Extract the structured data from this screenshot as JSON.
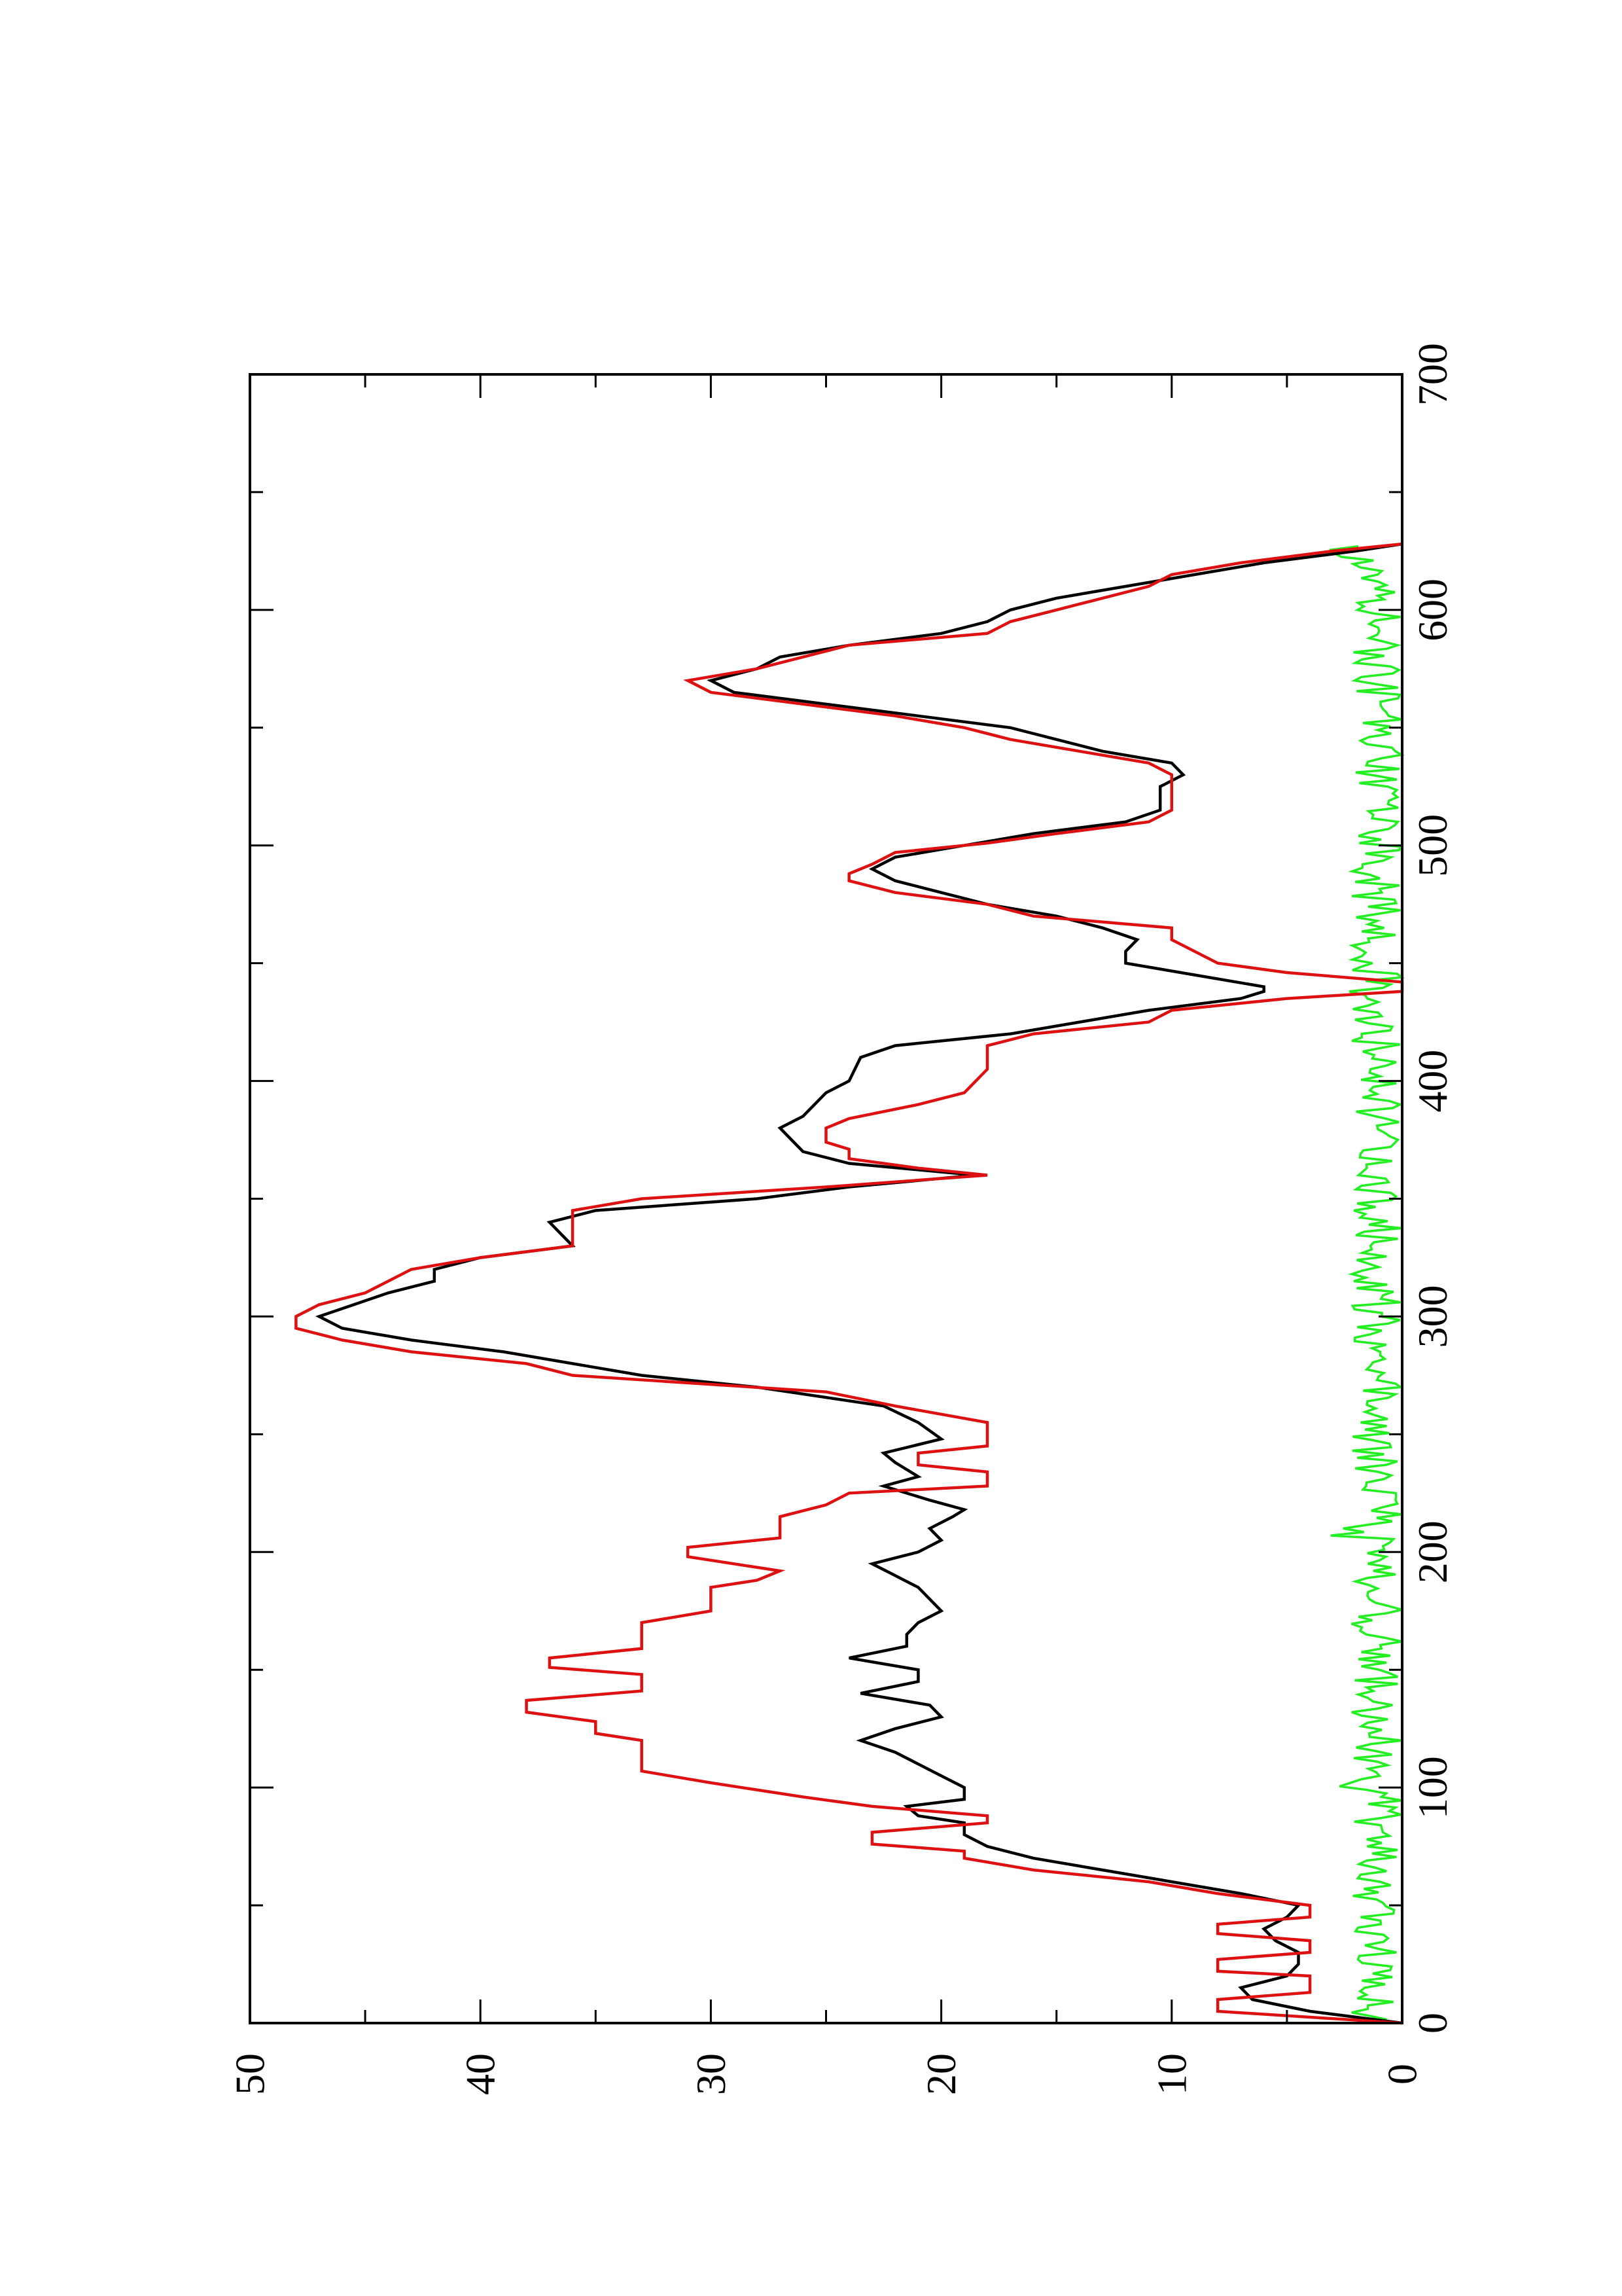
{
  "chart_data": {
    "type": "line",
    "title": "",
    "xlabel": "",
    "ylabel": "",
    "orientation": "rotated-90-ccw",
    "xlim": [
      0,
      700
    ],
    "ylim": [
      0,
      50
    ],
    "x_ticks": [
      0,
      100,
      200,
      300,
      400,
      500,
      600,
      700
    ],
    "x_tick_labels": [
      "0",
      "100",
      "200",
      "300",
      "400",
      "500",
      "600",
      "700"
    ],
    "x_minor_ticks": [
      50,
      150,
      250,
      350,
      450,
      550,
      650
    ],
    "y_ticks": [
      0,
      10,
      20,
      30,
      40,
      50
    ],
    "y_tick_labels": [
      "0",
      "10",
      "20",
      "30",
      "40",
      "50"
    ],
    "y_minor_ticks": [
      5,
      15,
      25,
      35,
      45
    ],
    "grid": false,
    "legend": "none",
    "series": [
      {
        "color": "#000000",
        "points": [
          [
            0,
            0
          ],
          [
            5,
            4
          ],
          [
            10,
            6.5
          ],
          [
            15,
            7
          ],
          [
            20,
            5
          ],
          [
            25,
            4.5
          ],
          [
            30,
            4.5
          ],
          [
            35,
            5.5
          ],
          [
            40,
            6
          ],
          [
            45,
            5
          ],
          [
            50,
            4.5
          ],
          [
            55,
            7
          ],
          [
            60,
            10
          ],
          [
            65,
            13
          ],
          [
            70,
            16
          ],
          [
            75,
            18
          ],
          [
            80,
            19
          ],
          [
            85,
            19
          ],
          [
            88,
            21
          ],
          [
            92,
            21.5
          ],
          [
            95,
            19
          ],
          [
            100,
            19
          ],
          [
            105,
            20
          ],
          [
            110,
            21
          ],
          [
            115,
            22
          ],
          [
            120,
            23.5
          ],
          [
            125,
            22
          ],
          [
            130,
            20
          ],
          [
            135,
            20.5
          ],
          [
            140,
            23.5
          ],
          [
            145,
            21
          ],
          [
            150,
            21
          ],
          [
            155,
            24
          ],
          [
            160,
            21.5
          ],
          [
            165,
            21.5
          ],
          [
            170,
            21
          ],
          [
            175,
            20
          ],
          [
            180,
            20.5
          ],
          [
            185,
            21
          ],
          [
            190,
            22
          ],
          [
            195,
            23
          ],
          [
            200,
            21
          ],
          [
            205,
            20
          ],
          [
            210,
            20.5
          ],
          [
            215,
            19.5
          ],
          [
            218,
            19
          ],
          [
            222,
            20.5
          ],
          [
            228,
            22.5
          ],
          [
            232,
            21
          ],
          [
            238,
            22
          ],
          [
            242,
            22.5
          ],
          [
            248,
            20
          ],
          [
            255,
            21
          ],
          [
            262,
            22.5
          ],
          [
            270,
            28
          ],
          [
            275,
            33
          ],
          [
            280,
            36
          ],
          [
            285,
            39
          ],
          [
            290,
            43
          ],
          [
            295,
            46
          ],
          [
            300,
            47
          ],
          [
            310,
            44
          ],
          [
            315,
            42
          ],
          [
            320,
            42
          ],
          [
            325,
            40
          ],
          [
            330,
            36
          ],
          [
            340,
            37
          ],
          [
            345,
            35
          ],
          [
            350,
            28
          ],
          [
            355,
            24
          ],
          [
            360,
            18.5
          ],
          [
            365,
            24
          ],
          [
            370,
            26
          ],
          [
            375,
            26.5
          ],
          [
            380,
            27
          ],
          [
            385,
            26
          ],
          [
            395,
            25
          ],
          [
            400,
            24
          ],
          [
            410,
            23.5
          ],
          [
            415,
            22
          ],
          [
            420,
            17
          ],
          [
            425,
            14
          ],
          [
            430,
            11
          ],
          [
            435,
            7
          ],
          [
            438,
            6
          ],
          [
            440,
            6
          ],
          [
            445,
            9
          ],
          [
            450,
            12
          ],
          [
            455,
            12
          ],
          [
            460,
            11.5
          ],
          [
            465,
            13
          ],
          [
            470,
            15
          ],
          [
            475,
            18
          ],
          [
            480,
            20
          ],
          [
            485,
            22
          ],
          [
            490,
            23
          ],
          [
            495,
            22
          ],
          [
            500,
            19
          ],
          [
            505,
            16
          ],
          [
            510,
            12
          ],
          [
            515,
            10.5
          ],
          [
            520,
            10.5
          ],
          [
            525,
            10.5
          ],
          [
            530,
            9.5
          ],
          [
            535,
            10
          ],
          [
            540,
            13
          ],
          [
            545,
            15
          ],
          [
            550,
            17
          ],
          [
            555,
            21
          ],
          [
            560,
            25
          ],
          [
            565,
            29
          ],
          [
            570,
            30
          ],
          [
            575,
            28
          ],
          [
            580,
            27
          ],
          [
            585,
            24
          ],
          [
            590,
            20
          ],
          [
            595,
            18
          ],
          [
            600,
            17
          ],
          [
            605,
            15
          ],
          [
            610,
            12
          ],
          [
            615,
            9
          ],
          [
            620,
            6
          ],
          [
            625,
            2
          ],
          [
            628,
            0
          ]
        ]
      },
      {
        "color": "#dd1111",
        "points": [
          [
            0,
            0
          ],
          [
            5,
            8
          ],
          [
            10,
            8
          ],
          [
            13,
            4
          ],
          [
            20,
            4
          ],
          [
            22,
            8
          ],
          [
            27,
            8
          ],
          [
            30,
            4
          ],
          [
            35,
            4
          ],
          [
            38,
            8
          ],
          [
            42,
            8
          ],
          [
            45,
            4
          ],
          [
            50,
            4
          ],
          [
            55,
            8
          ],
          [
            60,
            11
          ],
          [
            65,
            16
          ],
          [
            70,
            19
          ],
          [
            73,
            19
          ],
          [
            76,
            23
          ],
          [
            81,
            23
          ],
          [
            85,
            18
          ],
          [
            88,
            18
          ],
          [
            92,
            23
          ],
          [
            96,
            26
          ],
          [
            102,
            30
          ],
          [
            107,
            33
          ],
          [
            120,
            33
          ],
          [
            123,
            35
          ],
          [
            128,
            35
          ],
          [
            132,
            38
          ],
          [
            137,
            38
          ],
          [
            141,
            33
          ],
          [
            148,
            33
          ],
          [
            151,
            37
          ],
          [
            155,
            37
          ],
          [
            159,
            33
          ],
          [
            170,
            33
          ],
          [
            175,
            30
          ],
          [
            185,
            30
          ],
          [
            188,
            28
          ],
          [
            192,
            27
          ],
          [
            198,
            31
          ],
          [
            202,
            31
          ],
          [
            206,
            27
          ],
          [
            215,
            27
          ],
          [
            220,
            25
          ],
          [
            225,
            24
          ],
          [
            228,
            18
          ],
          [
            234,
            18
          ],
          [
            237,
            21
          ],
          [
            242,
            21
          ],
          [
            245,
            18
          ],
          [
            250,
            18
          ],
          [
            255,
            18
          ],
          [
            262,
            22
          ],
          [
            268,
            25
          ],
          [
            275,
            36
          ],
          [
            280,
            38
          ],
          [
            285,
            43
          ],
          [
            290,
            46
          ],
          [
            295,
            48
          ],
          [
            300,
            48
          ],
          [
            305,
            47
          ],
          [
            310,
            45
          ],
          [
            315,
            44
          ],
          [
            320,
            43
          ],
          [
            325,
            40
          ],
          [
            330,
            36
          ],
          [
            335,
            36
          ],
          [
            345,
            36
          ],
          [
            350,
            33
          ],
          [
            355,
            25
          ],
          [
            360,
            18
          ],
          [
            363,
            21
          ],
          [
            367,
            24
          ],
          [
            371,
            24
          ],
          [
            374,
            25
          ],
          [
            380,
            25
          ],
          [
            384,
            24
          ],
          [
            390,
            21
          ],
          [
            395,
            19
          ],
          [
            405,
            18
          ],
          [
            415,
            18
          ],
          [
            420,
            16
          ],
          [
            425,
            11
          ],
          [
            430,
            10
          ],
          [
            435,
            5
          ],
          [
            438,
            0
          ],
          [
            442,
            0
          ],
          [
            446,
            5
          ],
          [
            450,
            8
          ],
          [
            460,
            10
          ],
          [
            465,
            10
          ],
          [
            470,
            16
          ],
          [
            475,
            18
          ],
          [
            480,
            22
          ],
          [
            485,
            24
          ],
          [
            488,
            24
          ],
          [
            492,
            23
          ],
          [
            497,
            22
          ],
          [
            501,
            18
          ],
          [
            505,
            15
          ],
          [
            510,
            11
          ],
          [
            515,
            10
          ],
          [
            530,
            10
          ],
          [
            535,
            11
          ],
          [
            540,
            14
          ],
          [
            545,
            17
          ],
          [
            550,
            19
          ],
          [
            555,
            22
          ],
          [
            560,
            26
          ],
          [
            565,
            30
          ],
          [
            570,
            31
          ],
          [
            575,
            28
          ],
          [
            580,
            26
          ],
          [
            585,
            24
          ],
          [
            590,
            18
          ],
          [
            595,
            17
          ],
          [
            600,
            15
          ],
          [
            605,
            13
          ],
          [
            610,
            11
          ],
          [
            615,
            10
          ],
          [
            620,
            7
          ],
          [
            625,
            3
          ],
          [
            628,
            0
          ]
        ]
      },
      {
        "color": "#22ee22",
        "points": "noise-near-axis"
      }
    ]
  }
}
